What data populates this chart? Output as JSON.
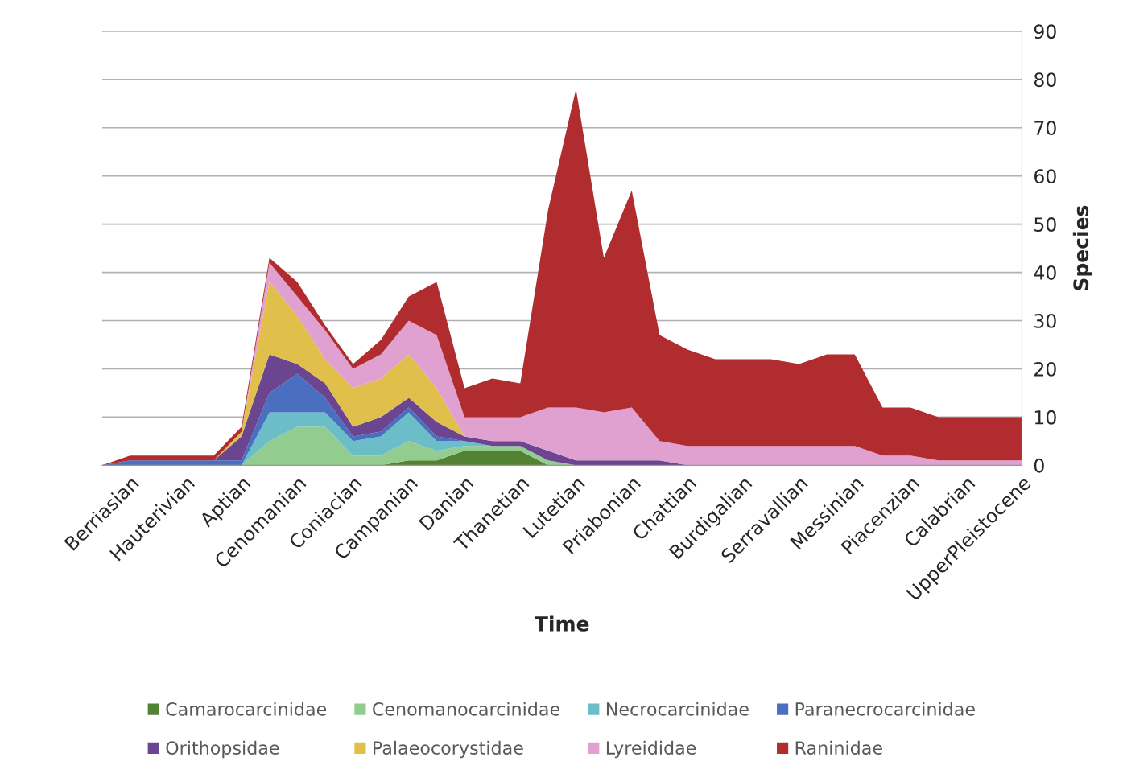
{
  "chart_data": {
    "type": "area",
    "stacked": true,
    "xlabel": "Time",
    "ylabel": "Species",
    "ylim": [
      0,
      90
    ],
    "yticks": [
      0,
      10,
      20,
      30,
      40,
      50,
      60,
      70,
      80,
      90
    ],
    "grid": "y",
    "legend": "bottom",
    "tick_labels": "xy",
    "categories": [
      null,
      "Berriasian",
      null,
      "Hauterivian",
      null,
      "Aptian",
      null,
      "Cenomanian",
      null,
      "Coniacian",
      null,
      "Campanian",
      null,
      "Danian",
      null,
      "Thanetian",
      null,
      "Lutetian",
      null,
      "Priabonian",
      null,
      "Chattian",
      null,
      "Burdigalian",
      null,
      "Serravallian",
      null,
      "Messinian",
      null,
      "Piacenzian",
      null,
      "Calabrian",
      null,
      "UpperPleistocene"
    ],
    "series": [
      {
        "name": "Camarocarcinidae",
        "color": "#548235",
        "values": [
          0,
          0,
          0,
          0,
          0,
          0,
          0,
          0,
          0,
          0,
          0,
          1,
          1,
          3,
          3,
          3,
          0,
          0,
          0,
          0,
          0,
          0,
          0,
          0,
          0,
          0,
          0,
          0,
          0,
          0,
          0,
          0,
          0,
          0
        ]
      },
      {
        "name": "Cenomanocarcinidae",
        "color": "#92cd8f",
        "values": [
          0,
          0,
          0,
          0,
          0,
          0,
          5,
          8,
          8,
          2,
          2,
          4,
          2,
          1,
          1,
          1,
          1,
          0,
          0,
          0,
          0,
          0,
          0,
          0,
          0,
          0,
          0,
          0,
          0,
          0,
          0,
          0,
          0,
          0
        ]
      },
      {
        "name": "Necrocarcinidae",
        "color": "#6bbdc8",
        "values": [
          0,
          0,
          0,
          0,
          0,
          0,
          6,
          3,
          3,
          3,
          4,
          6,
          2,
          1,
          0,
          0,
          0,
          0,
          0,
          0,
          0,
          0,
          0,
          0,
          0,
          0,
          0,
          0,
          0,
          0,
          0,
          0,
          0,
          0
        ]
      },
      {
        "name": "Paranecrocarcinidae",
        "color": "#4a6fc0",
        "values": [
          0,
          1,
          1,
          1,
          1,
          1,
          4,
          8,
          3,
          1,
          1,
          1,
          1,
          0,
          0,
          0,
          0,
          0,
          0,
          0,
          0,
          0,
          0,
          0,
          0,
          0,
          0,
          0,
          0,
          0,
          0,
          0,
          0,
          0
        ]
      },
      {
        "name": "Orithopsidae",
        "color": "#6b4590",
        "values": [
          0,
          0,
          0,
          0,
          0,
          5,
          8,
          2,
          3,
          2,
          3,
          2,
          3,
          1,
          1,
          1,
          2,
          1,
          1,
          1,
          1,
          0,
          0,
          0,
          0,
          0,
          0,
          0,
          0,
          0,
          0,
          0,
          0,
          0
        ]
      },
      {
        "name": "Palaeocorystidae",
        "color": "#e0bf4a",
        "values": [
          0,
          0,
          0,
          0,
          0,
          1,
          15,
          10,
          5,
          8,
          8,
          9,
          7,
          0,
          0,
          0,
          0,
          0,
          0,
          0,
          0,
          0,
          0,
          0,
          0,
          0,
          0,
          0,
          0,
          0,
          0,
          0,
          0,
          0
        ]
      },
      {
        "name": "Lyreididae",
        "color": "#e0a0d0",
        "values": [
          0,
          0,
          0,
          0,
          0,
          0,
          4,
          4,
          6,
          4,
          5,
          7,
          11,
          4,
          5,
          5,
          9,
          11,
          10,
          11,
          4,
          4,
          4,
          4,
          4,
          4,
          4,
          4,
          2,
          2,
          1,
          1,
          1,
          1
        ]
      },
      {
        "name": "Raninidae",
        "color": "#b02c2e",
        "values": [
          0,
          1,
          1,
          1,
          1,
          1,
          1,
          3,
          1,
          1,
          3,
          5,
          11,
          6,
          8,
          7,
          41,
          66,
          32,
          45,
          22,
          20,
          18,
          18,
          18,
          17,
          19,
          19,
          10,
          10,
          9,
          9,
          9,
          9
        ]
      }
    ]
  }
}
